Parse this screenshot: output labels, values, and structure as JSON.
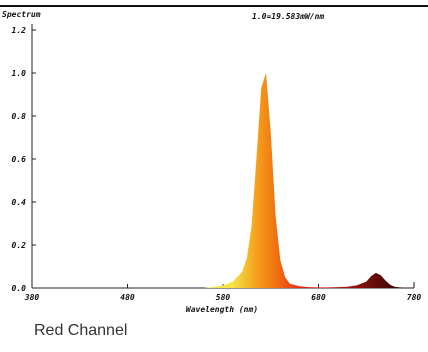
{
  "chart_data": {
    "type": "area",
    "title": "Spectrum",
    "annotation": "1.0=19.583mW/nm",
    "xlabel": "Wavelength (nm)",
    "ylabel": "",
    "xlim": [
      380,
      780
    ],
    "ylim": [
      0,
      1.2
    ],
    "x_ticks": [
      380,
      480,
      580,
      680,
      780
    ],
    "x_tick_labels": [
      "380",
      "480",
      "580",
      "680",
      "780"
    ],
    "y_ticks": [
      0,
      0.2,
      0.4,
      0.6,
      0.8,
      1.0,
      1.2
    ],
    "y_tick_labels": [
      "0.0",
      "0.2",
      "0.4",
      "0.6",
      "0.8",
      "1.0",
      "1.2"
    ],
    "grid": false,
    "series": [
      {
        "x": [
          560,
          570,
          580,
          590,
          600,
          605,
          610,
          615,
          620,
          625,
          630,
          635,
          640,
          645,
          650,
          660,
          670,
          680,
          690,
          700,
          710,
          720,
          730,
          735,
          740,
          745,
          750,
          755,
          760,
          770,
          780
        ],
        "values": [
          0.0,
          0.005,
          0.012,
          0.03,
          0.075,
          0.14,
          0.29,
          0.6,
          0.93,
          1.0,
          0.72,
          0.34,
          0.13,
          0.05,
          0.02,
          0.008,
          0.004,
          0.003,
          0.003,
          0.004,
          0.006,
          0.012,
          0.03,
          0.055,
          0.07,
          0.06,
          0.035,
          0.015,
          0.005,
          0.001,
          0.0
        ]
      }
    ],
    "fill_colors": [
      "#f4e34a",
      "#f5a21d",
      "#ef6a0f",
      "#e8231a",
      "#d11612",
      "#a2140f",
      "#6a0d08",
      "#3e0503"
    ]
  },
  "caption": "Red Channel"
}
